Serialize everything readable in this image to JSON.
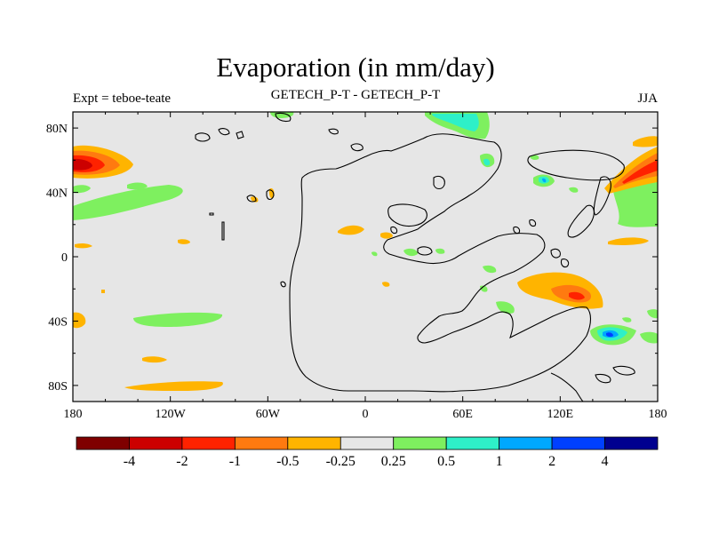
{
  "title": "Evaporation (in mm/day)",
  "subtitle_left": "Expt = teboe-teate",
  "subtitle_center": "GETECH_P-T - GETECH_P-T",
  "subtitle_right": "JJA",
  "x_ticks": [
    "180",
    "120W",
    "60W",
    "0",
    "60E",
    "120E",
    "180"
  ],
  "y_ticks": [
    "80N",
    "40N",
    "0",
    "40S",
    "80S"
  ],
  "colorbar": {
    "colors": [
      "#7f0000",
      "#cc0000",
      "#ff2200",
      "#ff7a10",
      "#ffb400",
      "#e6e6e6",
      "#7ef05f",
      "#2ef0c8",
      "#00a8ff",
      "#0040ff",
      "#00008f"
    ],
    "labels": [
      "-4",
      "-2",
      "-1",
      "-0.5",
      "-0.25",
      "0.25",
      "0.5",
      "1",
      "2",
      "4"
    ]
  },
  "chart_data": {
    "type": "heatmap",
    "title": "Evaporation (in mm/day)",
    "variable": "Evaporation",
    "units": "mm/day",
    "experiment": "teboe-teate",
    "season": "JJA",
    "lon_range": [
      -180,
      180
    ],
    "lat_range": [
      -90,
      90
    ],
    "levels": [
      -4,
      -2,
      -1,
      -0.5,
      -0.25,
      0.25,
      0.5,
      1,
      2,
      4
    ],
    "anomalies": [
      {
        "lon": [
          -180,
          -150
        ],
        "lat": [
          40,
          60
        ],
        "value": -2
      },
      {
        "lon": [
          -150,
          -120
        ],
        "lat": [
          30,
          45
        ],
        "value": 0.5
      },
      {
        "lon": [
          -180,
          -130
        ],
        "lat": [
          20,
          30
        ],
        "value": 0.5
      },
      {
        "lon": [
          -180,
          -170
        ],
        "lat": [
          -45,
          -35
        ],
        "value": -0.25
      },
      {
        "lon": [
          -160,
          -100
        ],
        "lat": [
          -40,
          -30
        ],
        "value": 0.5
      },
      {
        "lon": [
          -150,
          -90
        ],
        "lat": [
          -85,
          -75
        ],
        "value": -0.25
      },
      {
        "lon": [
          40,
          75
        ],
        "lat": [
          65,
          90
        ],
        "value": 1
      },
      {
        "lon": [
          95,
          140
        ],
        "lat": [
          -40,
          -20
        ],
        "value": -0.5
      },
      {
        "lon": [
          130,
          180
        ],
        "lat": [
          35,
          60
        ],
        "value": -1
      },
      {
        "lon": [
          140,
          180
        ],
        "lat": [
          0,
          30
        ],
        "value": 0.5
      },
      {
        "lon": [
          140,
          160
        ],
        "lat": [
          -55,
          -45
        ],
        "value": 1
      },
      {
        "lon": [
          110,
          120
        ],
        "lat": [
          35,
          45
        ],
        "value": 1
      }
    ]
  }
}
